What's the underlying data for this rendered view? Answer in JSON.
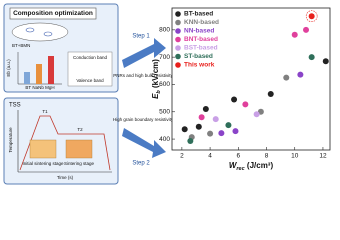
{
  "panels": {
    "top": {
      "title": "Composition optimization",
      "formula": "BT+BMN",
      "ylabel": "Eb (a.u.)",
      "cb": "Conduction band",
      "vb": "Valence band",
      "xlabel": "BT NaNb MgH"
    },
    "bottom": {
      "title": "TSS",
      "t1": "T1",
      "t2": "T2",
      "ylabel": "Temperature",
      "xlabel": "Time (s)",
      "stage1": "Initial sintering stage",
      "stage2": "Sintering stage"
    },
    "step1": "Step 1",
    "step1_note": "PNRs and high bulk resistivity",
    "step2": "Step 2",
    "step2_note": "High grain boundary resistivity"
  },
  "chart_data": {
    "type": "scatter",
    "xlabel": {
      "main": "W",
      "sub": "rec",
      "unit": " (J/cm³)"
    },
    "ylabel": {
      "main": "E",
      "sub": "b",
      "unit": " (kV/cm)"
    },
    "xlim": [
      1.3,
      12.5
    ],
    "ylim": [
      360,
      880
    ],
    "xticks": [
      2,
      4,
      6,
      8,
      10,
      12
    ],
    "yticks": [
      400,
      500,
      600,
      700,
      800
    ],
    "legend": "top-left",
    "series": [
      {
        "name": "BT-based",
        "color": "#222222",
        "x": [
          2.2,
          3.2,
          3.7,
          5.7,
          8.3,
          12.2
        ],
        "values": [
          436,
          445,
          510,
          545,
          565,
          685
        ]
      },
      {
        "name": "KNN-based",
        "color": "#808080",
        "x": [
          2.7,
          4.0,
          7.6,
          9.4
        ],
        "values": [
          407,
          420,
          500,
          625
        ]
      },
      {
        "name": "NN-based",
        "color": "#8a44c8",
        "x": [
          4.8,
          5.8,
          10.4
        ],
        "values": [
          422,
          429,
          636
        ]
      },
      {
        "name": "BNT-based",
        "color": "#e0409c",
        "x": [
          3.4,
          6.5,
          10.0,
          10.8
        ],
        "values": [
          480,
          527,
          782,
          800
        ]
      },
      {
        "name": "BST-based",
        "color": "#c9a0e6",
        "x": [
          4.4,
          7.3
        ],
        "values": [
          473,
          491
        ]
      },
      {
        "name": "ST-based",
        "color": "#2f6f5a",
        "x": [
          2.6,
          5.3,
          11.2
        ],
        "values": [
          393,
          451,
          700
        ]
      },
      {
        "name": "This work",
        "color": "#e8201c",
        "x": [
          11.2
        ],
        "values": [
          850
        ]
      }
    ]
  }
}
